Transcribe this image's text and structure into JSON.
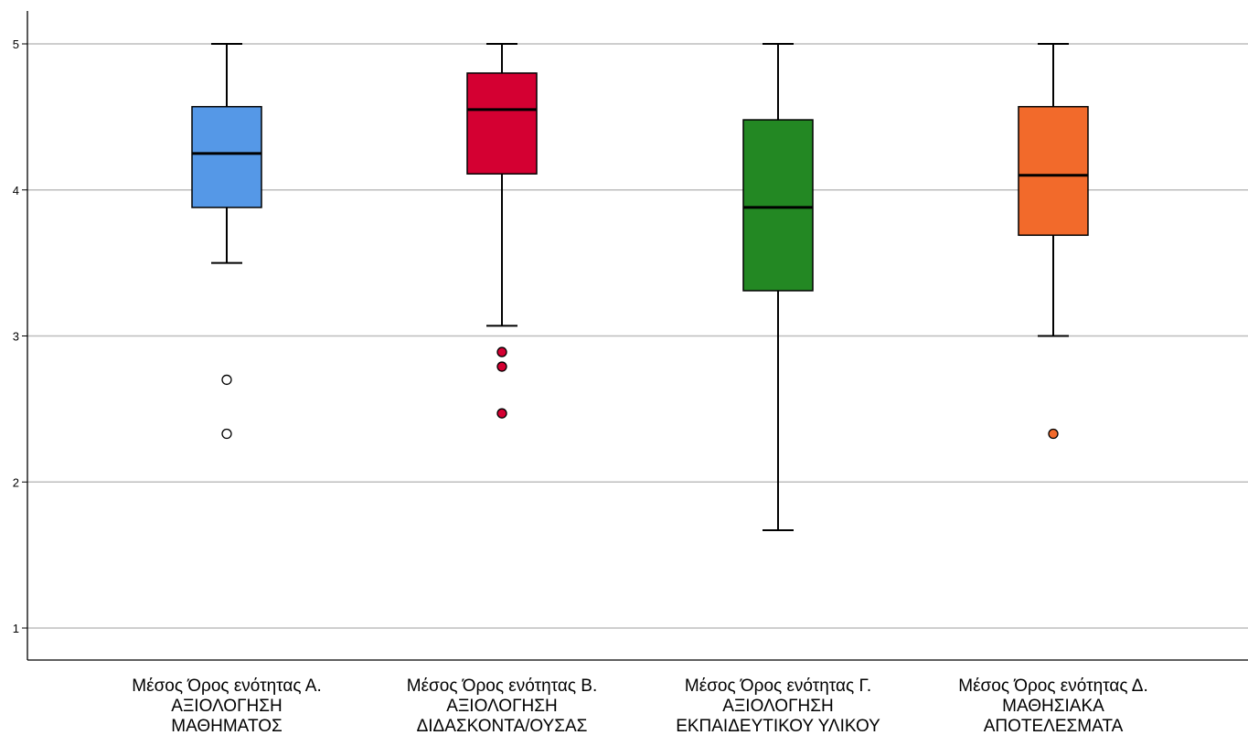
{
  "chart_data": {
    "type": "boxplot",
    "title": "",
    "xlabel": "",
    "ylabel": "",
    "ylim": [
      0.78,
      5.22
    ],
    "yticks": [
      1,
      2,
      3,
      4,
      5
    ],
    "grid": true,
    "series": [
      {
        "label_lines": [
          "Μέσος Όρος ενότητας Α.",
          "ΑΞΙΟΛΟΓΗΣΗ",
          "ΜΑΘΗΜΑΤΟΣ"
        ],
        "color": "#5598E7",
        "outlier_color": "#ffffff",
        "whisker_low": 3.5,
        "q1": 3.88,
        "median": 4.25,
        "q3": 4.57,
        "whisker_high": 5.0,
        "outliers": [
          2.7,
          2.33
        ]
      },
      {
        "label_lines": [
          "Μέσος Όρος ενότητας Β.",
          "ΑΞΙΟΛΟΓΗΣΗ",
          "ΔΙΔΑΣΚΟΝΤΑ/ΟΥΣΑΣ"
        ],
        "color": "#D40032",
        "outlier_color": "#D40032",
        "whisker_low": 3.07,
        "q1": 4.11,
        "median": 4.55,
        "q3": 4.8,
        "whisker_high": 5.0,
        "outliers": [
          2.89,
          2.79,
          2.47
        ]
      },
      {
        "label_lines": [
          "Μέσος Όρος ενότητας Γ.",
          "ΑΞΙΟΛΟΓΗΣΗ",
          "ΕΚΠΑΙΔΕΥΤΙΚΟΥ ΥΛΙΚΟΥ"
        ],
        "color": "#238823",
        "outlier_color": "#238823",
        "whisker_low": 1.67,
        "q1": 3.31,
        "median": 3.88,
        "q3": 4.48,
        "whisker_high": 5.0,
        "outliers": []
      },
      {
        "label_lines": [
          "Μέσος Όρος ενότητας Δ.",
          "ΜΑΘΗΣΙΑΚΑ",
          "ΑΠΟΤΕΛΕΣΜΑΤΑ"
        ],
        "color": "#F26A2B",
        "outlier_color": "#F26A2B",
        "whisker_low": 3.0,
        "q1": 3.69,
        "median": 4.1,
        "q3": 4.57,
        "whisker_high": 5.0,
        "outliers": [
          2.33
        ]
      }
    ]
  }
}
